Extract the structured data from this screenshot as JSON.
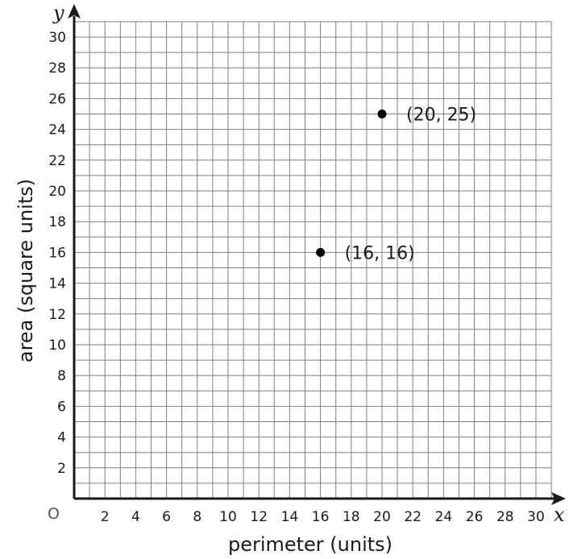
{
  "chart_data": {
    "type": "scatter",
    "xlabel": "perimeter (units)",
    "ylabel": "area (square units)",
    "x_axis_letter": "x",
    "y_axis_letter": "y",
    "origin_label": "O",
    "xlim": [
      0,
      32
    ],
    "ylim": [
      0,
      31
    ],
    "grid": true,
    "x_ticks": [
      2,
      4,
      6,
      8,
      10,
      12,
      14,
      16,
      18,
      20,
      22,
      24,
      26,
      28,
      30
    ],
    "y_ticks": [
      2,
      4,
      6,
      8,
      10,
      12,
      14,
      16,
      18,
      20,
      22,
      24,
      26,
      28,
      30
    ],
    "points": [
      {
        "x": 16,
        "y": 16,
        "label": "(16, 16)"
      },
      {
        "x": 20,
        "y": 25,
        "label": "(20, 25)"
      }
    ],
    "colors": {
      "grid": "#7f7f7f",
      "axis": "#1a1a1a",
      "point": "#000000"
    }
  }
}
